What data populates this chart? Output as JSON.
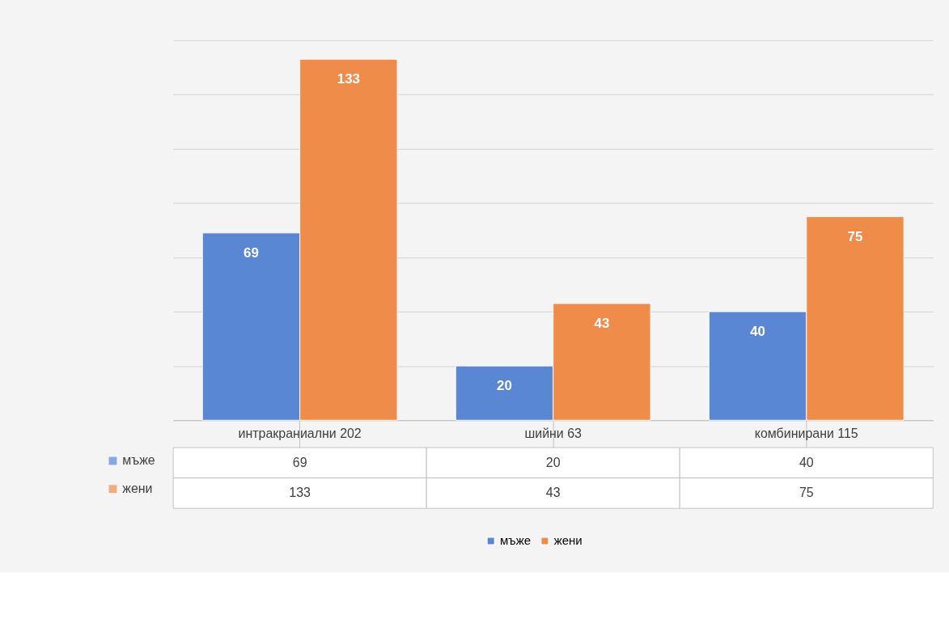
{
  "chart_data": {
    "type": "bar",
    "categories": [
      "интракраниални 202",
      "шийни 63",
      "комбинирани 115"
    ],
    "series": [
      {
        "name": "мъже",
        "color": "#5a87d4",
        "values": [
          69,
          20,
          40
        ],
        "value_labels": [
          "69",
          "20",
          "40"
        ]
      },
      {
        "name": "жени",
        "color": "#ef8c4a",
        "values": [
          133,
          43,
          75
        ],
        "value_labels": [
          "133",
          "43",
          "75"
        ]
      }
    ],
    "ylim": [
      0,
      140
    ],
    "yticks": [
      {
        "value": 0,
        "label": null
      },
      {
        "value": 20,
        "label": null
      },
      {
        "value": 40,
        "label": null
      },
      {
        "value": 60,
        "label": null
      },
      {
        "value": 80,
        "label": null
      },
      {
        "value": 100,
        "label": null
      },
      {
        "value": 120,
        "label": null
      },
      {
        "value": 140,
        "label": null
      }
    ],
    "annotations": [
      "69",
      "20",
      "40",
      "133",
      "43",
      "75"
    ],
    "tick_labels": "x",
    "grid": "y",
    "legend": "bottom"
  }
}
